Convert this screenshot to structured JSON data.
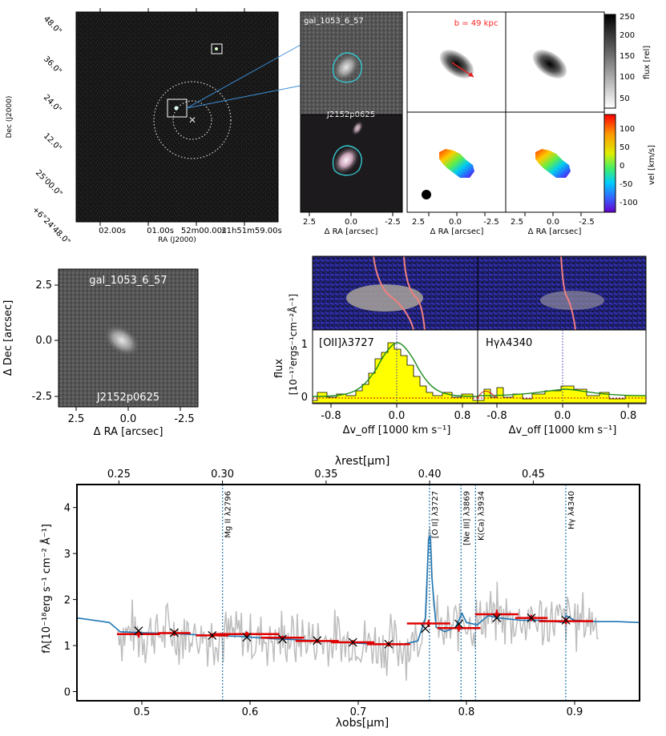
{
  "galaxy_id": "gal_1053_6_57",
  "field_id": "J2152p0625",
  "sky_panel": {
    "xlabel": "RA (J2000)",
    "ylabel": "Dec (J2000)",
    "ra_ticks": [
      "02.00s",
      "01.00s",
      "52m00.00s",
      "21h51m59.00s"
    ],
    "dec_ticks": [
      "48.0\"",
      "36.0\"",
      "24.0\"",
      "12.0\"",
      "25'00.0\"",
      "+6°24'48.0\""
    ]
  },
  "cutout_panels": {
    "xlabel": "Δ RA [arcsec]",
    "ticks": [
      "2.5",
      "0.0",
      "-2.5"
    ]
  },
  "kinematics": {
    "impact_label": "b = 49 kpc",
    "flux_label": "flux [rel]",
    "vel_label": "vel [km/s]",
    "flux_ticks": [
      "250",
      "200",
      "150",
      "100",
      "50"
    ],
    "vel_ticks": [
      "100",
      "50",
      "0",
      "-50",
      "-100"
    ],
    "ra_ticks": [
      "2.5",
      "0.0",
      "-2.5"
    ],
    "xlabel": "Δ RA [arcsec]"
  },
  "zoom_panel": {
    "xlabel": "Δ RA [arcsec]",
    "ylabel": "Δ Dec [arcsec]",
    "x_ticks": [
      "2.5",
      "0.0",
      "-2.5"
    ],
    "y_ticks": [
      "2.5",
      "0.0",
      "-2.5"
    ]
  },
  "line_panels": {
    "ylabel_top": "flux",
    "ylabel_bottom": "[10⁻¹⁷ergs⁻¹cm⁻²Å⁻¹]",
    "xlabel": "Δv_off [1000 km s⁻¹]",
    "y_ticks": [
      "0",
      "1"
    ],
    "x_ticks": [
      "-0.8",
      "-0.4",
      "0.0",
      "0.4",
      "0.8"
    ],
    "oii_label": "[OII]λ3727",
    "hg_label": "Hγλ4340"
  },
  "chart_data": {
    "type": "line",
    "title": "",
    "xlabel": "λobs[μm]",
    "xlabel_top": "λrest[μm]",
    "ylabel": "fλ[10⁻¹⁸erg s⁻¹ cm⁻² Å⁻¹]",
    "xlim": [
      0.44,
      0.96
    ],
    "ylim": [
      -0.2,
      4.5
    ],
    "x_ticks": [
      "0.5",
      "0.6",
      "0.7",
      "0.8",
      "0.9"
    ],
    "x_tick_values": [
      0.5,
      0.6,
      0.7,
      0.8,
      0.9
    ],
    "y_ticks": [
      "0",
      "1",
      "2",
      "3",
      "4"
    ],
    "y_tick_values": [
      0,
      1,
      2,
      3,
      4
    ],
    "rest_ticks": [
      "0.25",
      "0.30",
      "0.35",
      "0.40",
      "0.45"
    ],
    "rest_tick_obs": [
      0.4788,
      0.5745,
      0.6703,
      0.766,
      0.8618
    ],
    "lines": [
      {
        "label": "Mg II λ2796",
        "x": 0.5746
      },
      {
        "label": "[O II] λ3727",
        "x": 0.7658
      },
      {
        "label": "[Ne III] λ3869",
        "x": 0.795
      },
      {
        "label": "K(Ca) λ3934",
        "x": 0.8084
      },
      {
        "label": "Hγ λ4340",
        "x": 0.8918
      }
    ],
    "model_x": [
      0.44,
      0.47,
      0.48,
      0.5,
      0.53,
      0.56,
      0.59,
      0.62,
      0.65,
      0.68,
      0.7,
      0.72,
      0.74,
      0.755,
      0.762,
      0.765,
      0.7665,
      0.768,
      0.772,
      0.78,
      0.79,
      0.796,
      0.8,
      0.81,
      0.82,
      0.83,
      0.85,
      0.87,
      0.89,
      0.892,
      0.9,
      0.92,
      0.94,
      0.96
    ],
    "model_y": [
      1.6,
      1.5,
      1.3,
      1.28,
      1.26,
      1.22,
      1.2,
      1.15,
      1.12,
      1.08,
      1.05,
      1.03,
      1.02,
      1.1,
      1.6,
      3.3,
      3.4,
      2.5,
      1.4,
      1.3,
      1.4,
      1.7,
      1.5,
      1.45,
      1.65,
      1.6,
      1.55,
      1.55,
      1.5,
      1.65,
      1.55,
      1.52,
      1.52,
      1.5
    ],
    "photometry": [
      {
        "x": 0.497,
        "y": 1.25,
        "xerr": 0.02,
        "yerr": 0.08
      },
      {
        "x": 0.53,
        "y": 1.27,
        "xerr": 0.015,
        "yerr": 0.06
      },
      {
        "x": 0.565,
        "y": 1.22,
        "xerr": 0.015,
        "yerr": 0.05
      },
      {
        "x": 0.597,
        "y": 1.25,
        "xerr": 0.03,
        "yerr": 0.05
      },
      {
        "x": 0.63,
        "y": 1.17,
        "xerr": 0.02,
        "yerr": 0.04
      },
      {
        "x": 0.662,
        "y": 1.1,
        "xerr": 0.02,
        "yerr": 0.04
      },
      {
        "x": 0.695,
        "y": 1.07,
        "xerr": 0.02,
        "yerr": 0.05
      },
      {
        "x": 0.728,
        "y": 1.03,
        "xerr": 0.02,
        "yerr": 0.05
      },
      {
        "x": 0.765,
        "y": 1.48,
        "xerr": 0.02,
        "yerr": 0.08
      },
      {
        "x": 0.793,
        "y": 1.38,
        "xerr": 0.02,
        "yerr": 0.08
      },
      {
        "x": 0.828,
        "y": 1.68,
        "xerr": 0.02,
        "yerr": 0.1
      },
      {
        "x": 0.86,
        "y": 1.6,
        "xerr": 0.015,
        "yerr": 0.07
      },
      {
        "x": 0.892,
        "y": 1.53,
        "xerr": 0.025,
        "yerr": 0.07
      }
    ],
    "model_photometry": [
      {
        "x": 0.497,
        "y": 1.32
      },
      {
        "x": 0.53,
        "y": 1.28
      },
      {
        "x": 0.565,
        "y": 1.22
      },
      {
        "x": 0.597,
        "y": 1.18
      },
      {
        "x": 0.63,
        "y": 1.14
      },
      {
        "x": 0.662,
        "y": 1.11
      },
      {
        "x": 0.695,
        "y": 1.07
      },
      {
        "x": 0.728,
        "y": 1.03
      },
      {
        "x": 0.762,
        "y": 1.37
      },
      {
        "x": 0.793,
        "y": 1.47
      },
      {
        "x": 0.828,
        "y": 1.6
      },
      {
        "x": 0.86,
        "y": 1.6
      },
      {
        "x": 0.892,
        "y": 1.55
      }
    ]
  }
}
